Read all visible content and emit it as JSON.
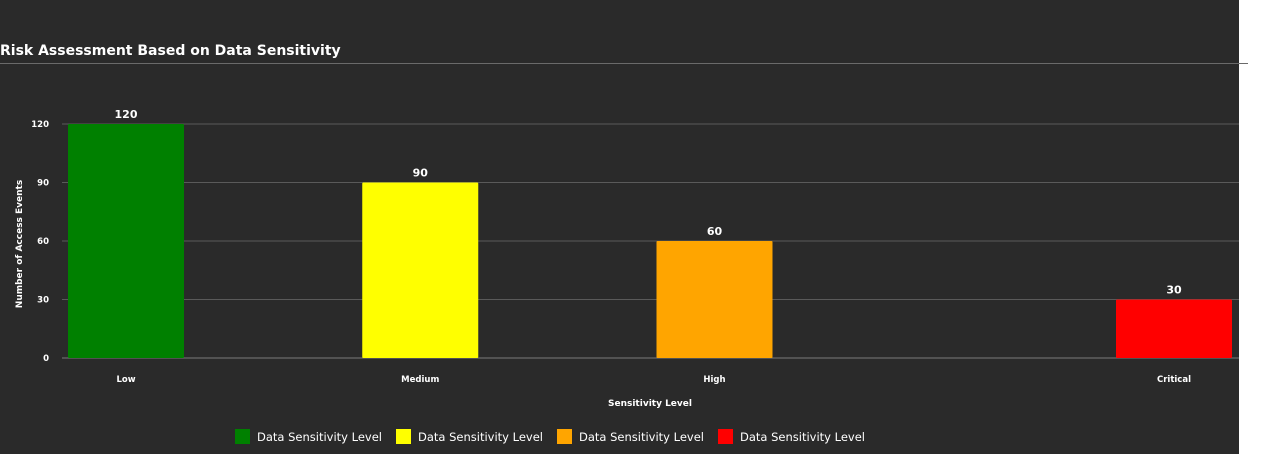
{
  "chart_data": {
    "type": "bar",
    "title": "Risk Assessment Based on Data Sensitivity",
    "xlabel": "Sensitivity Level",
    "ylabel": "Number of Access Events",
    "categories": [
      "Low",
      "Medium",
      "High",
      "Critical"
    ],
    "values": [
      120,
      90,
      60,
      30
    ],
    "colors": [
      "#008000",
      "#ffff00",
      "#ffa500",
      "#ff0000"
    ],
    "ylim": [
      0,
      120
    ],
    "yticks": [
      "0",
      "30",
      "60",
      "90",
      "120"
    ],
    "data_labels": [
      "120",
      "90",
      "60",
      "30"
    ],
    "grid": true,
    "legend": {
      "placement": "bottom",
      "entries": [
        {
          "label": "Data Sensitivity Level",
          "color": "#008000"
        },
        {
          "label": "Data Sensitivity Level",
          "color": "#ffff00"
        },
        {
          "label": "Data Sensitivity Level",
          "color": "#ffa500"
        },
        {
          "label": "Data Sensitivity Level",
          "color": "#ff0000"
        }
      ]
    }
  }
}
